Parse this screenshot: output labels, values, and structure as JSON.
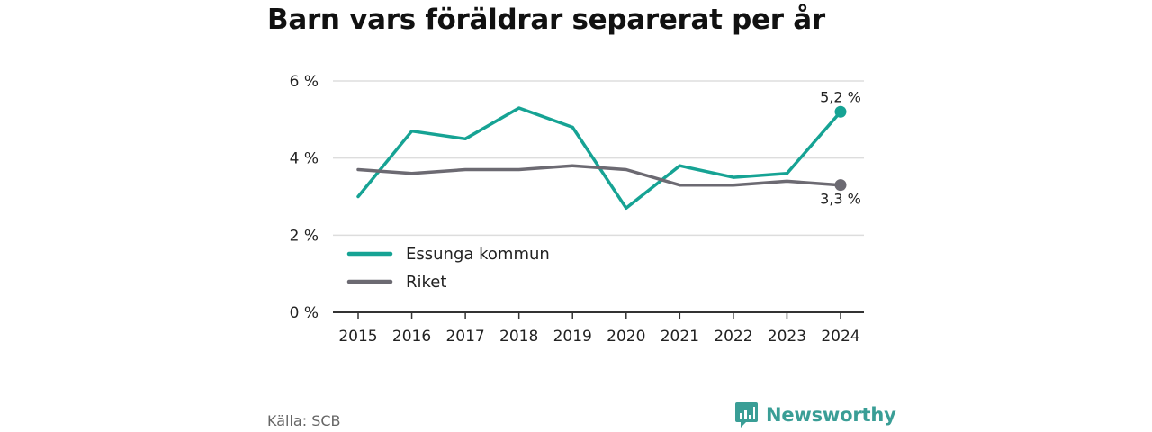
{
  "header": {
    "title": "Barn vars föräldrar separerat per år"
  },
  "footer": {
    "source": "Källa: SCB",
    "brand": "Newsworthy",
    "brand_icon": "newsworthy-logo-icon"
  },
  "colors": {
    "essunga": "#16a394",
    "riket": "#6c6a72",
    "grid": "#dddddd",
    "axis": "#333333",
    "brand": "#3a9e96"
  },
  "chart_data": {
    "type": "line",
    "title": "Barn vars föräldrar separerat per år",
    "x": [
      2015,
      2016,
      2017,
      2018,
      2019,
      2020,
      2021,
      2022,
      2023,
      2024
    ],
    "x_tick_labels": [
      "2015",
      "2016",
      "2017",
      "2018",
      "2019",
      "2020",
      "2021",
      "2022",
      "2023",
      "2024"
    ],
    "y_ticks": [
      0,
      2,
      4,
      6
    ],
    "y_tick_labels": [
      "0 %",
      "2 %",
      "4 %",
      "6 %"
    ],
    "ylim": [
      0,
      6
    ],
    "grid": "horizontal",
    "legend_position": "bottom-left",
    "series": [
      {
        "name": "Essunga kommun",
        "color": "#16a394",
        "values": [
          3.0,
          4.7,
          4.5,
          5.3,
          4.8,
          2.7,
          3.8,
          3.5,
          3.6,
          5.2
        ],
        "end_label": "5,2 %"
      },
      {
        "name": "Riket",
        "color": "#6c6a72",
        "values": [
          3.7,
          3.6,
          3.7,
          3.7,
          3.8,
          3.7,
          3.3,
          3.3,
          3.4,
          3.3
        ],
        "end_label": "3,3 %"
      }
    ]
  }
}
